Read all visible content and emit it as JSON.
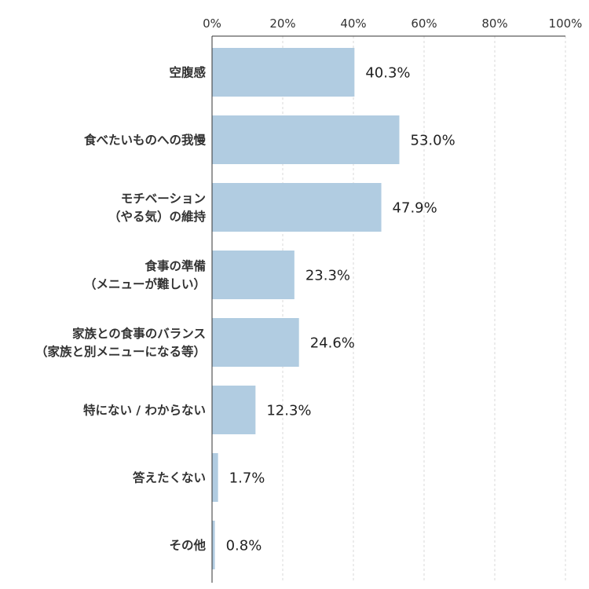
{
  "chart_data": {
    "type": "bar",
    "orientation": "horizontal",
    "xlim": [
      0,
      100
    ],
    "x_ticks": [
      0,
      20,
      40,
      60,
      80,
      100
    ],
    "x_tick_labels": [
      "0%",
      "20%",
      "40%",
      "60%",
      "80%",
      "100%"
    ],
    "grid": true,
    "bar_color": "#b1cce1",
    "categories": [
      [
        "空腹感"
      ],
      [
        "食べたいものへの我慢"
      ],
      [
        "モチベーション",
        "（やる気）の維持"
      ],
      [
        "食事の準備",
        "（メニューが難しい）"
      ],
      [
        "家族との食事のバランス",
        "（家族と別メニューになる等）"
      ],
      [
        "特にない / わからない"
      ],
      [
        "答えたくない"
      ],
      [
        "その他"
      ]
    ],
    "values": [
      40.3,
      53.0,
      47.9,
      23.3,
      24.6,
      12.3,
      1.7,
      0.8
    ],
    "value_labels": [
      "40.3%",
      "53.0%",
      "47.9%",
      "23.3%",
      "24.6%",
      "12.3%",
      "1.7%",
      "0.8%"
    ]
  }
}
